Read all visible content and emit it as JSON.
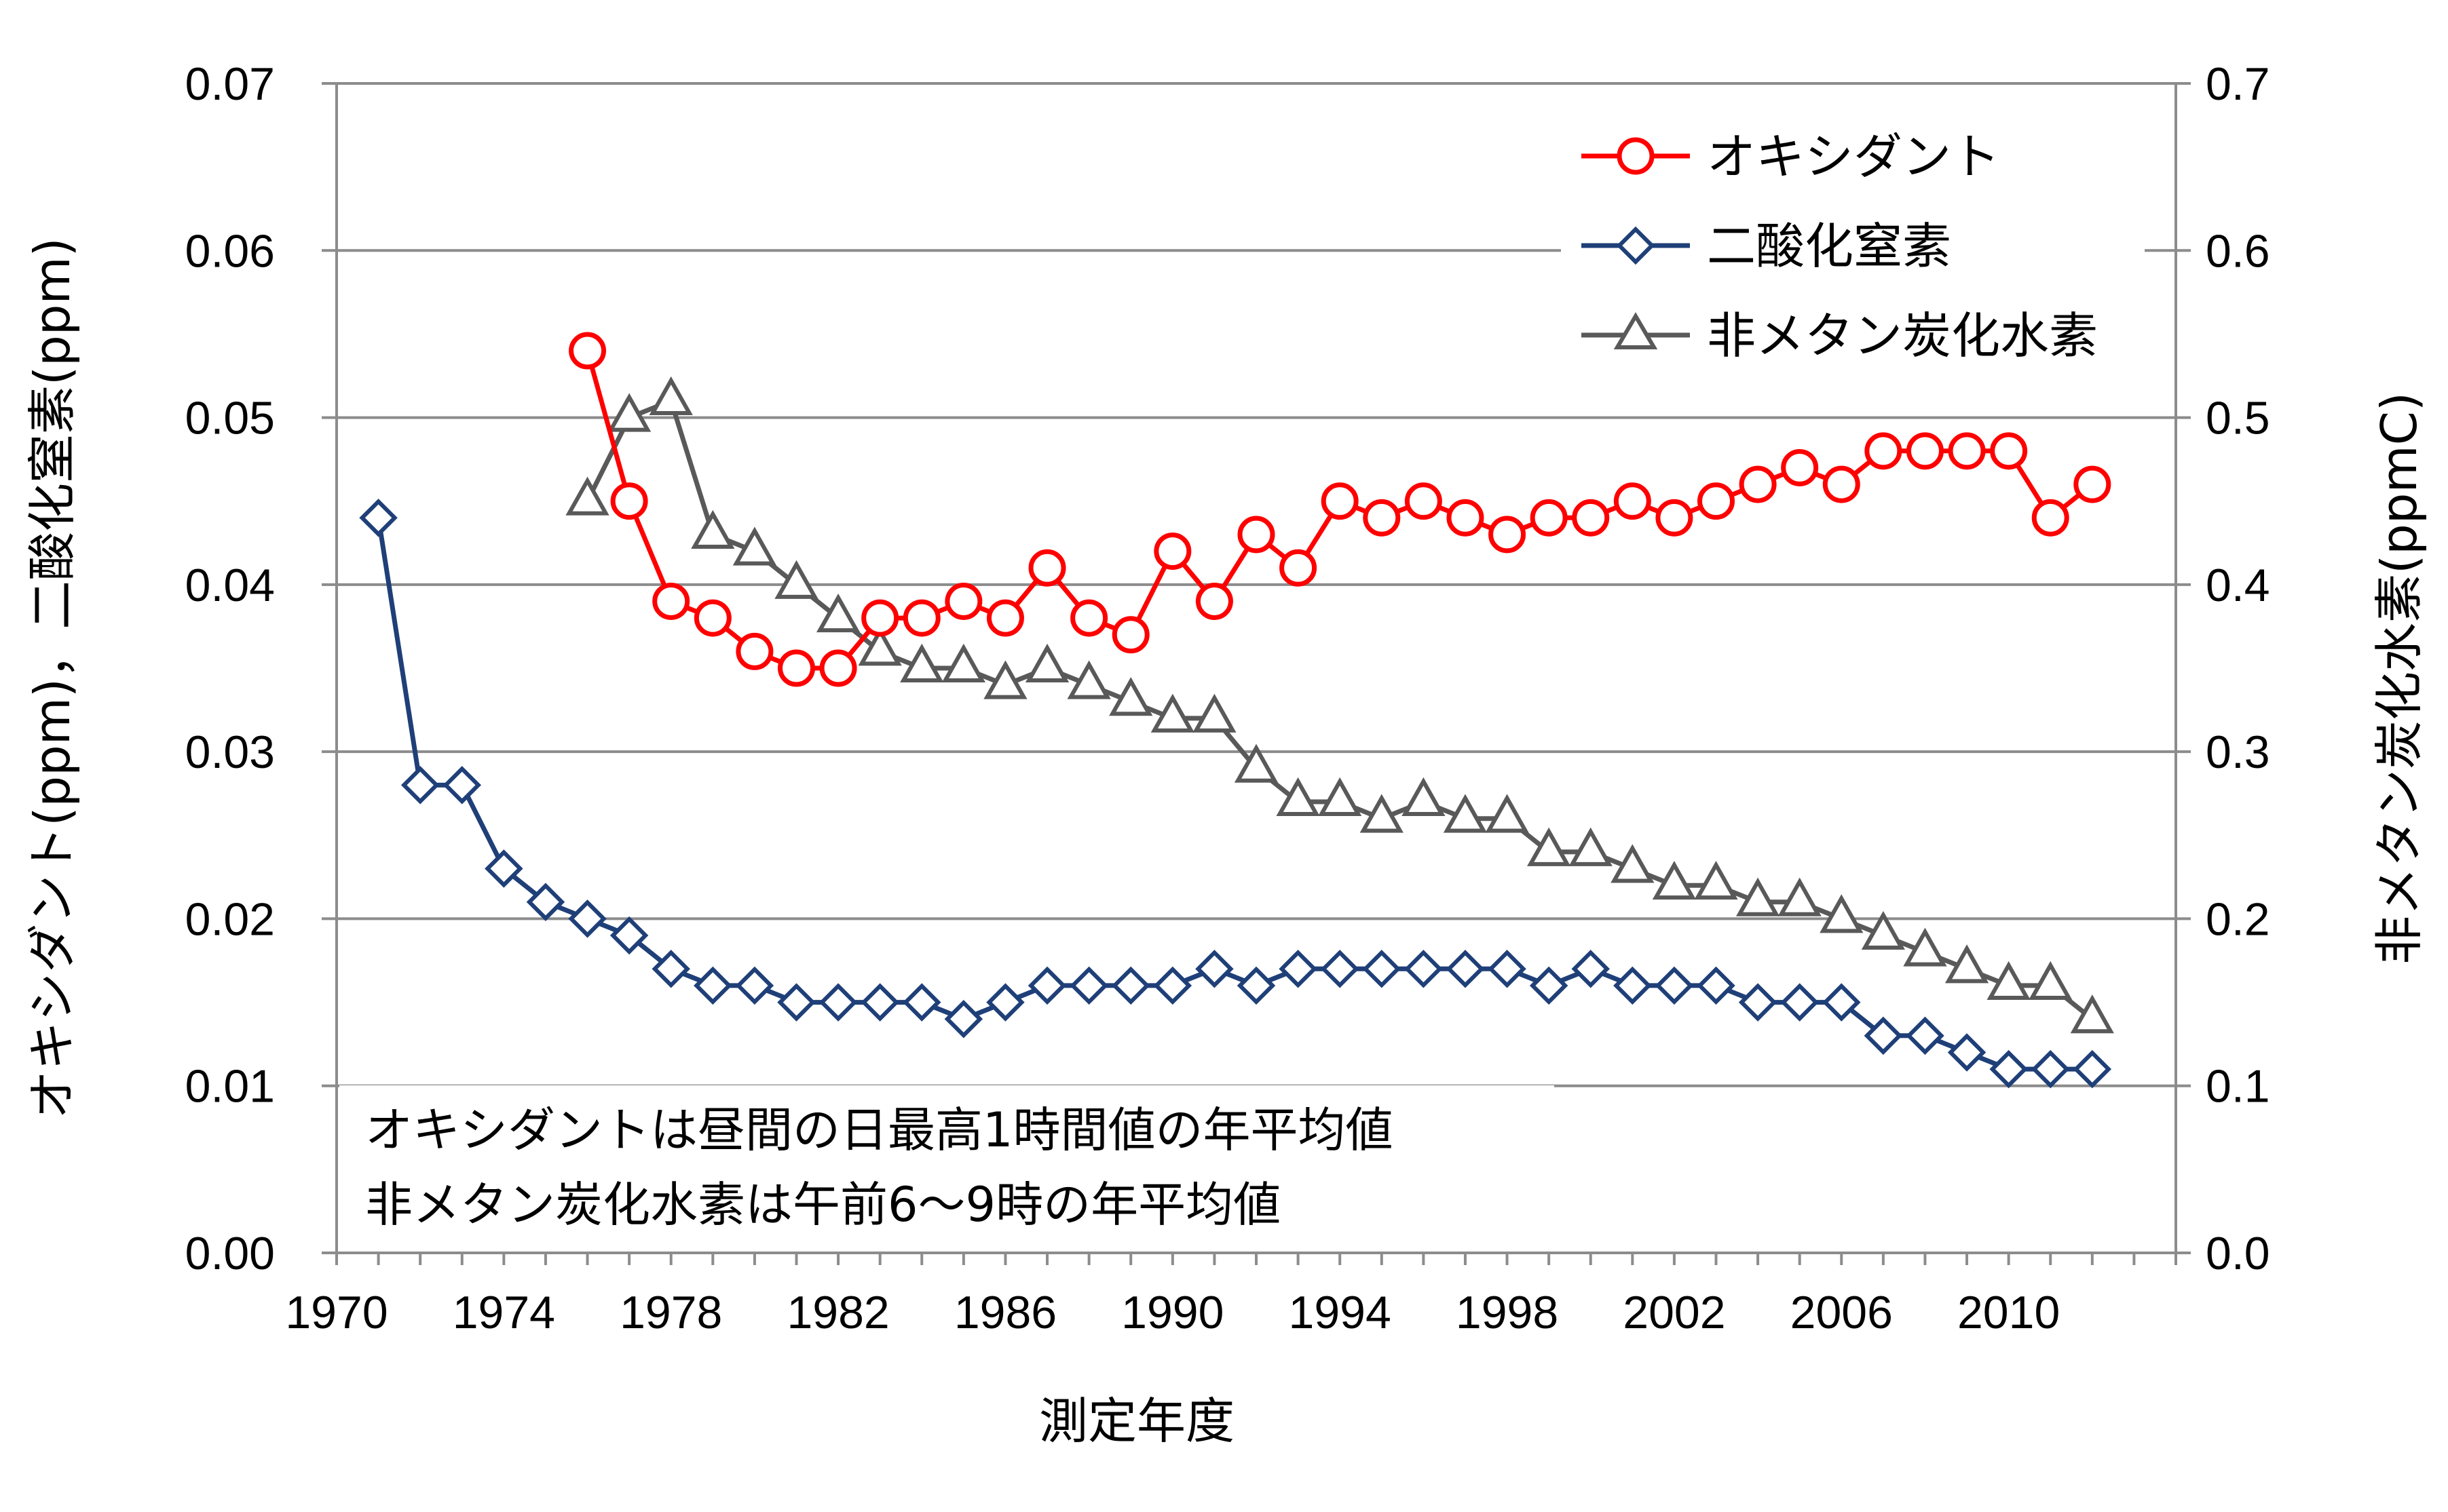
{
  "chart_data": {
    "type": "line",
    "title": "",
    "xlabel": "測定年度",
    "ylabel_left": "オキシダント(ppm)，二酸化窒素(ppm)",
    "ylabel_right": "非メタン炭化水素(ppmC)",
    "xlim": [
      1970,
      2014
    ],
    "ylim_left": [
      0,
      0.07
    ],
    "ylim_right": [
      0,
      0.7
    ],
    "x_ticks": [
      "1970",
      "1974",
      "1978",
      "1982",
      "1986",
      "1990",
      "1994",
      "1998",
      "2002",
      "2006",
      "2010"
    ],
    "y_ticks_left": [
      "0.00",
      "0.01",
      "0.02",
      "0.03",
      "0.04",
      "0.05",
      "0.06",
      "0.07"
    ],
    "y_ticks_right": [
      "0.0",
      "0.1",
      "0.2",
      "0.3",
      "0.4",
      "0.5",
      "0.6",
      "0.7"
    ],
    "grid": true,
    "legend_position": "top-right",
    "series": [
      {
        "name": "オキシダント",
        "axis": "left",
        "color": "#ff0000",
        "marker": "circle",
        "x": [
          1976,
          1977,
          1978,
          1979,
          1980,
          1981,
          1982,
          1983,
          1984,
          1985,
          1986,
          1987,
          1988,
          1989,
          1990,
          1991,
          1992,
          1993,
          1994,
          1995,
          1996,
          1997,
          1998,
          1999,
          2000,
          2001,
          2002,
          2003,
          2004,
          2005,
          2006,
          2007,
          2008,
          2009,
          2010,
          2011,
          2012
        ],
        "values": [
          0.054,
          0.045,
          0.039,
          0.038,
          0.036,
          0.035,
          0.035,
          0.038,
          0.038,
          0.039,
          0.038,
          0.041,
          0.038,
          0.037,
          0.042,
          0.039,
          0.043,
          0.041,
          0.045,
          0.044,
          0.045,
          0.044,
          0.043,
          0.044,
          0.044,
          0.045,
          0.044,
          0.045,
          0.046,
          0.047,
          0.046,
          0.048,
          0.048,
          0.048,
          0.048,
          0.044,
          0.046
        ]
      },
      {
        "name": "二酸化窒素",
        "axis": "left",
        "color": "#1f3f78",
        "marker": "diamond",
        "x": [
          1971,
          1972,
          1973,
          1974,
          1975,
          1976,
          1977,
          1978,
          1979,
          1980,
          1981,
          1982,
          1983,
          1984,
          1985,
          1986,
          1987,
          1988,
          1989,
          1990,
          1991,
          1992,
          1993,
          1994,
          1995,
          1996,
          1997,
          1998,
          1999,
          2000,
          2001,
          2002,
          2003,
          2004,
          2005,
          2006,
          2007,
          2008,
          2009,
          2010,
          2011,
          2012
        ],
        "values": [
          0.044,
          0.028,
          0.028,
          0.023,
          0.021,
          0.02,
          0.019,
          0.017,
          0.016,
          0.016,
          0.015,
          0.015,
          0.015,
          0.015,
          0.014,
          0.015,
          0.016,
          0.016,
          0.016,
          0.016,
          0.017,
          0.016,
          0.017,
          0.017,
          0.017,
          0.017,
          0.017,
          0.017,
          0.016,
          0.017,
          0.016,
          0.016,
          0.016,
          0.015,
          0.015,
          0.015,
          0.013,
          0.013,
          0.012,
          0.011,
          0.011,
          0.011
        ]
      },
      {
        "name": "非メタン炭化水素",
        "axis": "right",
        "color": "#595959",
        "marker": "triangle",
        "x": [
          1976,
          1977,
          1978,
          1979,
          1980,
          1981,
          1982,
          1983,
          1984,
          1985,
          1986,
          1987,
          1988,
          1989,
          1990,
          1991,
          1992,
          1993,
          1994,
          1995,
          1996,
          1997,
          1998,
          1999,
          2000,
          2001,
          2002,
          2003,
          2004,
          2005,
          2006,
          2007,
          2008,
          2009,
          2010,
          2011,
          2012
        ],
        "values": [
          0.45,
          0.5,
          0.51,
          0.43,
          0.42,
          0.4,
          0.38,
          0.36,
          0.35,
          0.35,
          0.34,
          0.35,
          0.34,
          0.33,
          0.32,
          0.32,
          0.29,
          0.27,
          0.27,
          0.26,
          0.27,
          0.26,
          0.26,
          0.24,
          0.24,
          0.23,
          0.22,
          0.22,
          0.21,
          0.21,
          0.2,
          0.19,
          0.18,
          0.17,
          0.16,
          0.16,
          0.14
        ]
      }
    ],
    "annotations": [
      "オキシダントは昼間の日最高1時間値の年平均値",
      "非メタン炭化水素は午前6～9時の年平均値"
    ]
  }
}
